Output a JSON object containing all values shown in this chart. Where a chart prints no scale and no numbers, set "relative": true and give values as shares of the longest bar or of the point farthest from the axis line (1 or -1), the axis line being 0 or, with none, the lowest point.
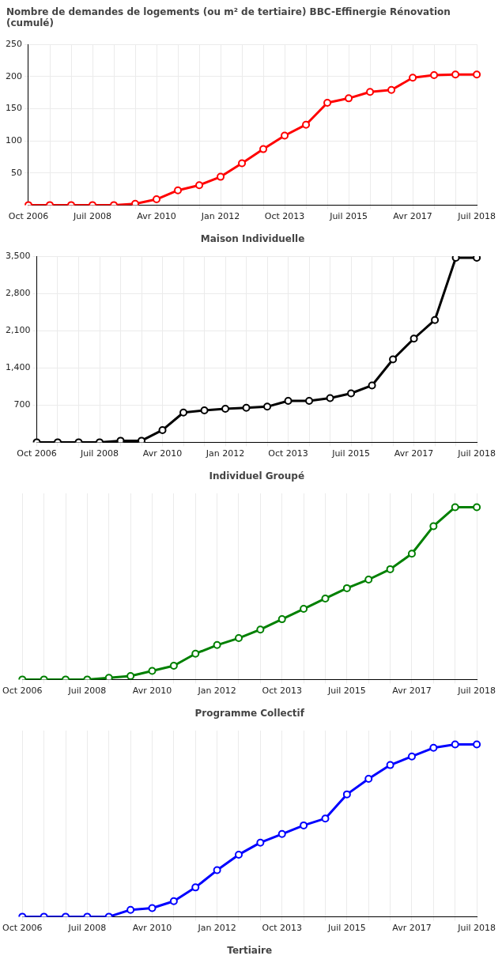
{
  "chart_data": [
    {
      "type": "line",
      "title": "Nombre de demandes de logements (ou m² de tertiaire) BBC-Effinergie Rénovation (cumulé)",
      "xlabel": "Maison Individuelle",
      "categories": [
        "Oct 2006",
        null,
        null,
        "Juil 2008",
        null,
        null,
        "Avr 2010",
        null,
        null,
        "Jan 2012",
        null,
        null,
        "Oct 2013",
        null,
        null,
        "Juil 2015",
        null,
        null,
        "Avr 2017",
        null,
        null,
        "Juil 2018"
      ],
      "series": [
        {
          "color": "#ff0000",
          "values": [
            0,
            0,
            0,
            0,
            0,
            2,
            9,
            23,
            31,
            44,
            65,
            87,
            108,
            125,
            159,
            166,
            176,
            179,
            198,
            202,
            203,
            203
          ]
        }
      ],
      "ylim": [
        0,
        250
      ],
      "yticks": [
        50,
        100,
        150,
        200,
        250
      ],
      "grid": true,
      "marker": "circle"
    },
    {
      "type": "line",
      "xlabel": "Individuel Groupé",
      "categories": [
        "Oct 2006",
        null,
        null,
        "Juil 2008",
        null,
        null,
        "Avr 2010",
        null,
        null,
        "Jan 2012",
        null,
        null,
        "Oct 2013",
        null,
        null,
        "Juil 2015",
        null,
        null,
        "Avr 2017",
        null,
        null,
        "Juil 2018"
      ],
      "series": [
        {
          "color": "#000000",
          "values": [
            0,
            0,
            0,
            0,
            30,
            30,
            230,
            560,
            600,
            630,
            650,
            670,
            780,
            780,
            830,
            920,
            1070,
            1560,
            1950,
            2300,
            3470,
            3470
          ]
        }
      ],
      "ylim": [
        0,
        3500
      ],
      "yticks": [
        700,
        {
          "value": 1400,
          "label": "1,400"
        },
        {
          "value": 2100,
          "label": "2,100"
        },
        {
          "value": 2800,
          "label": "2,800"
        },
        {
          "value": 3500,
          "label": "3,500"
        }
      ],
      "grid": true,
      "marker": "circle"
    },
    {
      "type": "line",
      "xlabel": "Programme Collectif",
      "relative": true,
      "categories": [
        "Oct 2006",
        null,
        null,
        "Juil 2008",
        null,
        null,
        "Avr 2010",
        null,
        null,
        "Jan 2012",
        null,
        null,
        "Oct 2013",
        null,
        null,
        "Juil 2015",
        null,
        null,
        "Avr 2017",
        null,
        null,
        "Juil 2018"
      ],
      "series": [
        {
          "color": "#008000",
          "values": [
            0,
            0,
            0,
            0,
            0.01,
            0.02,
            0.05,
            0.08,
            0.15,
            0.2,
            0.24,
            0.29,
            0.35,
            0.41,
            0.47,
            0.53,
            0.58,
            0.64,
            0.73,
            0.89,
            1,
            1
          ]
        }
      ],
      "grid": true,
      "marker": "circle"
    },
    {
      "type": "line",
      "xlabel": "Tertiaire",
      "relative": true,
      "categories": [
        "Oct 2006",
        null,
        null,
        "Juil 2008",
        null,
        null,
        "Avr 2010",
        null,
        null,
        "Jan 2012",
        null,
        null,
        "Oct 2013",
        null,
        null,
        "Juil 2015",
        null,
        null,
        "Avr 2017",
        null,
        null,
        "Juil 2018"
      ],
      "series": [
        {
          "color": "#0000ff",
          "values": [
            0,
            0,
            0,
            0,
            0,
            0.04,
            0.05,
            0.09,
            0.17,
            0.27,
            0.36,
            0.43,
            0.48,
            0.53,
            0.57,
            0.71,
            0.8,
            0.88,
            0.93,
            0.98,
            1,
            1
          ]
        }
      ],
      "grid": true,
      "marker": "circle"
    }
  ]
}
